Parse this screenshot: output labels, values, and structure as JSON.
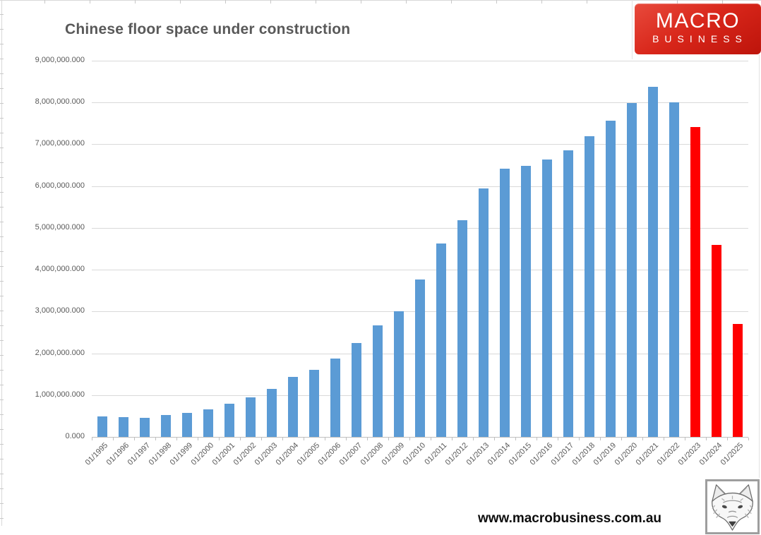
{
  "title": "Chinese floor space under construction",
  "logo": {
    "line1": "MACRO",
    "line2": "BUSINESS",
    "background": "#d8261a"
  },
  "footer": {
    "url": "www.macrobusiness.com.au"
  },
  "chart_data": {
    "type": "bar",
    "title": "Chinese floor space under construction",
    "xlabel": "",
    "ylabel": "",
    "categories": [
      "01/1995",
      "01/1996",
      "01/1997",
      "01/1998",
      "01/1999",
      "01/2000",
      "01/2001",
      "01/2002",
      "01/2003",
      "01/2004",
      "01/2005",
      "01/2006",
      "01/2007",
      "01/2008",
      "01/2009",
      "01/2010",
      "01/2011",
      "01/2012",
      "01/2013",
      "01/2014",
      "01/2015",
      "01/2016",
      "01/2017",
      "01/2018",
      "01/2019",
      "01/2020",
      "01/2021",
      "01/2022",
      "01/2023",
      "01/2024",
      "01/2025"
    ],
    "values": [
      490000,
      470000,
      450000,
      520000,
      570000,
      660000,
      800000,
      940000,
      1150000,
      1440000,
      1600000,
      1870000,
      2240000,
      2670000,
      3000000,
      3760000,
      4630000,
      5180000,
      5950000,
      6420000,
      6490000,
      6640000,
      6850000,
      7200000,
      7570000,
      7980000,
      8380000,
      8000000,
      7420000,
      4600000,
      2700000
    ],
    "highlight_categories": [
      "01/2023",
      "01/2024",
      "01/2025"
    ],
    "colors": {
      "default": "#5B9BD5",
      "highlight": "#FF0000",
      "gridline": "#D9D9D9",
      "axis": "#BFBFBF",
      "label": "#595959"
    },
    "ylim": [
      0,
      9000000
    ],
    "ytick_step": 1000000,
    "ytick_labels": [
      "0.000",
      "1,000,000.000",
      "2,000,000.000",
      "3,000,000.000",
      "4,000,000.000",
      "5,000,000.000",
      "6,000,000.000",
      "7,000,000.000",
      "8,000,000.000",
      "9,000,000.000"
    ],
    "x_tick_rotation": -45,
    "grid": "horizontal",
    "legend": "none"
  }
}
